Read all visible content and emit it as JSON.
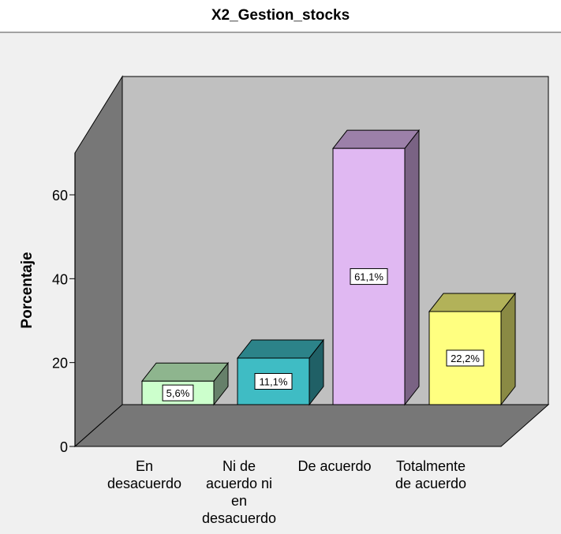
{
  "chart_data": {
    "type": "bar",
    "title": "X2_Gestion_stocks",
    "xlabel": "",
    "ylabel": "Porcentaje",
    "ylim": [
      0,
      70
    ],
    "yticks": [
      0,
      20,
      40,
      60
    ],
    "grid": false,
    "categories": [
      [
        "En",
        "desacuerdo"
      ],
      [
        "Ni de",
        "acuerdo ni",
        "en",
        "desacuerdo"
      ],
      [
        "De acuerdo"
      ],
      [
        "Totalmente",
        "de acuerdo"
      ]
    ],
    "values": [
      5.6,
      11.1,
      61.1,
      22.2
    ],
    "value_labels": [
      "5,6%",
      "11,1%",
      "61,1%",
      "22,2%"
    ],
    "colors": {
      "bars": [
        "#ccffcc",
        "#3fbcc4",
        "#e0b8f2",
        "#ffff80"
      ],
      "bar_tops": [
        "#8eb58e",
        "#2c8389",
        "#9c80a9",
        "#b2b259"
      ],
      "bar_sides": [
        "#66806a",
        "#206066",
        "#7a6384",
        "#8a8a44"
      ],
      "plot_back": "#c0c0c0",
      "floor": "#777777",
      "wall": "#777777",
      "background": "#f0f0f0"
    }
  }
}
